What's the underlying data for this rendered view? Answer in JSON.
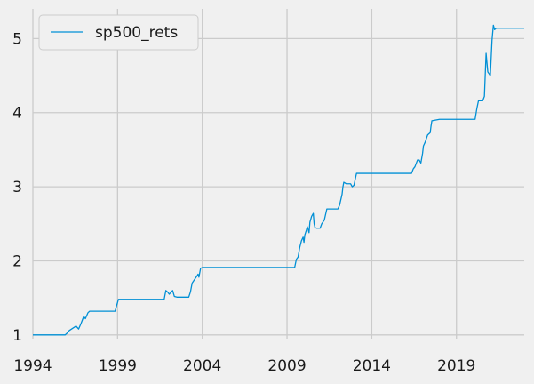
{
  "chart_data": {
    "type": "line",
    "title": "",
    "xlabel": "",
    "ylabel": "",
    "xlim": [
      1994,
      2023.0
    ],
    "ylim": [
      0.95,
      5.4
    ],
    "grid": true,
    "legend_position": "top-left",
    "x_ticks": [
      1994,
      1999,
      2004,
      2009,
      2014,
      2019
    ],
    "y_ticks": [
      1,
      2,
      3,
      4,
      5
    ],
    "series": [
      {
        "name": "sp500_rets",
        "color": "#008fd5",
        "x": [
          1994.0,
          1995.4,
          1995.9,
          1996.0,
          1996.15,
          1996.35,
          1996.55,
          1996.7,
          1996.85,
          1997.0,
          1997.1,
          1997.25,
          1997.35,
          1998.0,
          1998.85,
          1998.95,
          1999.05,
          1999.2,
          2001.5,
          2001.75,
          2001.85,
          2001.95,
          2002.05,
          2002.25,
          2002.35,
          2002.5,
          2002.65,
          2002.9,
          2003.2,
          2003.3,
          2003.4,
          2003.55,
          2003.7,
          2003.75,
          2003.8,
          2003.85,
          2003.9,
          2004.0,
          2005.0,
          2007.0,
          2009.3,
          2009.45,
          2009.55,
          2009.65,
          2009.75,
          2009.85,
          2009.95,
          2010.0,
          2010.05,
          2010.15,
          2010.2,
          2010.3,
          2010.35,
          2010.45,
          2010.55,
          2010.6,
          2010.65,
          2010.75,
          2010.9,
          2010.95,
          2011.05,
          2011.2,
          2011.35,
          2011.5,
          2011.7,
          2011.85,
          2012.0,
          2012.1,
          2012.25,
          2012.3,
          2012.35,
          2012.5,
          2012.6,
          2012.75,
          2012.85,
          2012.95,
          2013.1,
          2013.2,
          2014.0,
          2015.0,
          2016.2,
          2016.35,
          2016.45,
          2016.55,
          2016.7,
          2016.8,
          2016.9,
          2017.0,
          2017.05,
          2017.15,
          2017.3,
          2017.45,
          2017.5,
          2017.55,
          2018.0,
          2019.0,
          2020.1,
          2020.2,
          2020.3,
          2020.45,
          2020.55,
          2020.65,
          2020.75,
          2020.85,
          2021.0,
          2021.1,
          2021.18,
          2021.25,
          2021.35,
          2021.5,
          2022.0,
          2023.0
        ],
        "y": [
          1.0,
          1.0,
          1.0,
          1.02,
          1.06,
          1.09,
          1.12,
          1.08,
          1.16,
          1.25,
          1.22,
          1.3,
          1.32,
          1.32,
          1.32,
          1.4,
          1.48,
          1.48,
          1.48,
          1.48,
          1.6,
          1.58,
          1.55,
          1.6,
          1.52,
          1.51,
          1.51,
          1.51,
          1.51,
          1.58,
          1.7,
          1.75,
          1.8,
          1.82,
          1.78,
          1.84,
          1.9,
          1.91,
          1.91,
          1.91,
          1.91,
          1.91,
          2.02,
          2.05,
          2.18,
          2.27,
          2.32,
          2.25,
          2.35,
          2.42,
          2.46,
          2.38,
          2.52,
          2.6,
          2.64,
          2.5,
          2.45,
          2.44,
          2.44,
          2.44,
          2.5,
          2.55,
          2.7,
          2.7,
          2.7,
          2.7,
          2.7,
          2.75,
          2.9,
          3.0,
          3.06,
          3.04,
          3.04,
          3.04,
          3.0,
          3.02,
          3.18,
          3.18,
          3.18,
          3.18,
          3.18,
          3.18,
          3.24,
          3.27,
          3.36,
          3.36,
          3.32,
          3.45,
          3.55,
          3.6,
          3.7,
          3.73,
          3.82,
          3.89,
          3.91,
          3.91,
          3.91,
          4.05,
          4.16,
          4.16,
          4.16,
          4.22,
          4.8,
          4.55,
          4.5,
          4.98,
          5.18,
          5.12,
          5.14,
          5.14,
          5.14,
          5.14
        ]
      }
    ]
  }
}
